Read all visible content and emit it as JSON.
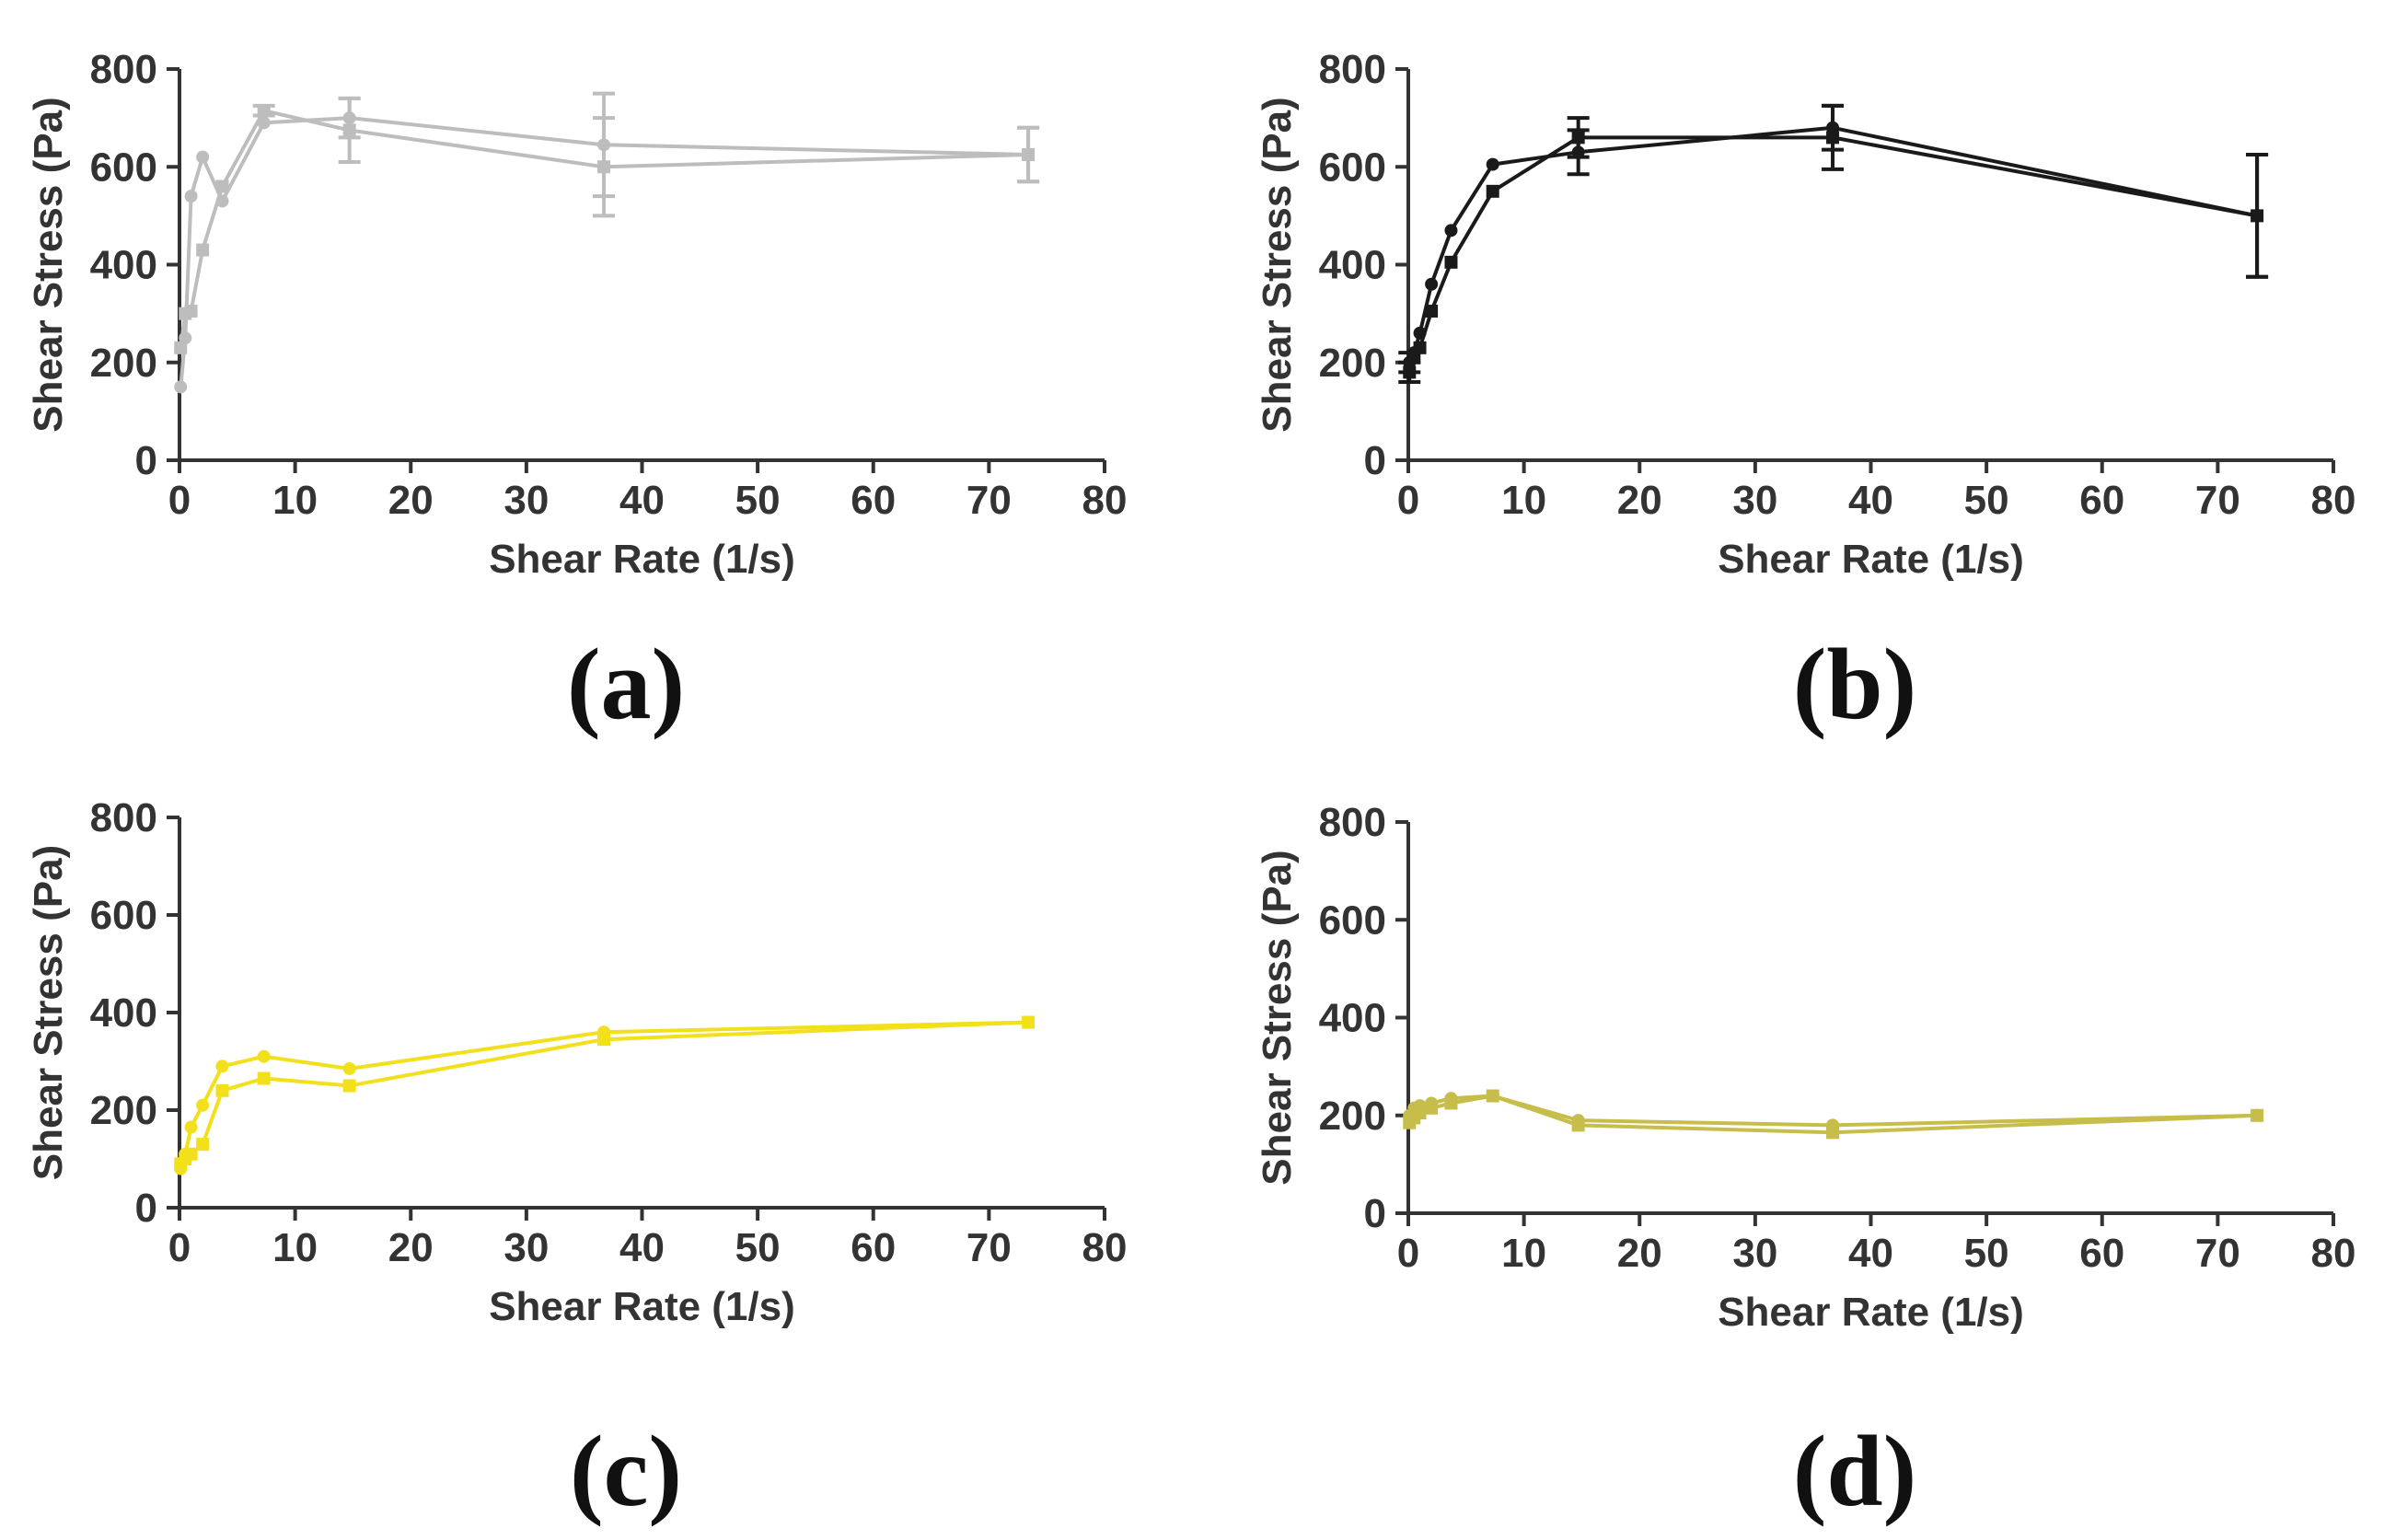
{
  "figure": {
    "panels": [
      "(a)",
      "(b)",
      "(c)",
      "(d)"
    ]
  },
  "chart_data": [
    {
      "id": "a",
      "type": "line",
      "panel_label": "(a)",
      "color": "#bdbdbd",
      "xlabel": "Shear Rate (1/s)",
      "ylabel": "Shear Stress (Pa)",
      "xlim": [
        0,
        80
      ],
      "ylim": [
        0,
        800
      ],
      "xticks": [
        "0",
        "10",
        "20",
        "30",
        "40",
        "50",
        "60",
        "70",
        "80"
      ],
      "yticks": [
        "0",
        "200",
        "400",
        "600",
        "800"
      ],
      "series": [
        {
          "name": "circle-marker series",
          "marker": "circle",
          "x": [
            0.1,
            0.5,
            1,
            2,
            3.7,
            7.3,
            14.7,
            36.7,
            73.4
          ],
          "y": [
            150,
            250,
            540,
            620,
            530,
            690,
            700,
            645,
            625
          ],
          "err": [
            0,
            0,
            0,
            0,
            0,
            0,
            40,
            105,
            55
          ]
        },
        {
          "name": "square-marker series",
          "marker": "square",
          "x": [
            0.1,
            0.5,
            1,
            2,
            3.7,
            7.3,
            14.7,
            36.7,
            73.4
          ],
          "y": [
            230,
            300,
            305,
            430,
            560,
            715,
            675,
            600,
            625
          ],
          "err": [
            0,
            0,
            0,
            0,
            0,
            10,
            65,
            100,
            55
          ]
        }
      ]
    },
    {
      "id": "b",
      "type": "line",
      "panel_label": "(b)",
      "color": "#1a1a1a",
      "xlabel": "Shear Rate (1/s)",
      "ylabel": "Shear Stress (Pa)",
      "xlim": [
        0,
        80
      ],
      "ylim": [
        0,
        800
      ],
      "xticks": [
        "0",
        "10",
        "20",
        "30",
        "40",
        "50",
        "60",
        "70",
        "80"
      ],
      "yticks": [
        "0",
        "200",
        "400",
        "600",
        "800"
      ],
      "series": [
        {
          "name": "circle-marker series",
          "marker": "circle",
          "x": [
            0.1,
            0.5,
            1,
            2,
            3.7,
            7.3,
            14.7,
            36.7,
            73.4
          ],
          "y": [
            200,
            220,
            260,
            360,
            470,
            605,
            630,
            680,
            500
          ],
          "err": [
            20,
            0,
            0,
            0,
            0,
            0,
            45,
            45,
            125
          ]
        },
        {
          "name": "square-marker series",
          "marker": "square",
          "x": [
            0.1,
            0.5,
            1,
            2,
            3.7,
            7.3,
            14.7,
            36.7,
            73.4
          ],
          "y": [
            180,
            210,
            230,
            305,
            405,
            550,
            660,
            660,
            500
          ],
          "err": [
            20,
            0,
            0,
            0,
            0,
            0,
            40,
            65,
            125
          ]
        }
      ]
    },
    {
      "id": "c",
      "type": "line",
      "panel_label": "(c)",
      "color": "#f2e01a",
      "xlabel": "Shear Rate (1/s)",
      "ylabel": "Shear Stress (Pa)",
      "xlim": [
        0,
        80
      ],
      "ylim": [
        0,
        800
      ],
      "xticks": [
        "0",
        "10",
        "20",
        "30",
        "40",
        "50",
        "60",
        "70",
        "80"
      ],
      "yticks": [
        "0",
        "200",
        "400",
        "600",
        "800"
      ],
      "series": [
        {
          "name": "circle-marker series",
          "marker": "circle",
          "x": [
            0.1,
            0.5,
            1,
            2,
            3.7,
            7.3,
            14.7,
            36.7,
            73.4
          ],
          "y": [
            80,
            110,
            165,
            210,
            290,
            310,
            285,
            360,
            380
          ],
          "err": [
            0,
            0,
            0,
            0,
            0,
            0,
            0,
            0,
            0
          ]
        },
        {
          "name": "square-marker series",
          "marker": "square",
          "x": [
            0.1,
            0.5,
            1,
            2,
            3.7,
            7.3,
            14.7,
            36.7,
            73.4
          ],
          "y": [
            90,
            100,
            110,
            130,
            240,
            265,
            250,
            345,
            380
          ],
          "err": [
            0,
            0,
            0,
            0,
            0,
            0,
            0,
            0,
            0
          ]
        }
      ]
    },
    {
      "id": "d",
      "type": "line",
      "panel_label": "(d)",
      "color": "#c7bd4a",
      "xlabel": "Shear Rate (1/s)",
      "ylabel": "Shear Stress (Pa)",
      "xlim": [
        0,
        80
      ],
      "ylim": [
        0,
        800
      ],
      "xticks": [
        "0",
        "10",
        "20",
        "30",
        "40",
        "50",
        "60",
        "70",
        "80"
      ],
      "yticks": [
        "0",
        "200",
        "400",
        "600",
        "800"
      ],
      "series": [
        {
          "name": "circle-marker series",
          "marker": "circle",
          "x": [
            0.1,
            0.5,
            1,
            2,
            3.7,
            7.3,
            14.7,
            36.7,
            73.4
          ],
          "y": [
            200,
            215,
            220,
            225,
            235,
            240,
            190,
            180,
            200
          ],
          "err": [
            0,
            0,
            0,
            0,
            0,
            0,
            0,
            0,
            0
          ]
        },
        {
          "name": "square-marker series",
          "marker": "square",
          "x": [
            0.1,
            0.5,
            1,
            2,
            3.7,
            7.3,
            14.7,
            36.7,
            73.4
          ],
          "y": [
            185,
            195,
            205,
            215,
            225,
            240,
            180,
            165,
            200
          ],
          "err": [
            0,
            0,
            0,
            0,
            0,
            0,
            0,
            0,
            0
          ]
        }
      ]
    }
  ]
}
